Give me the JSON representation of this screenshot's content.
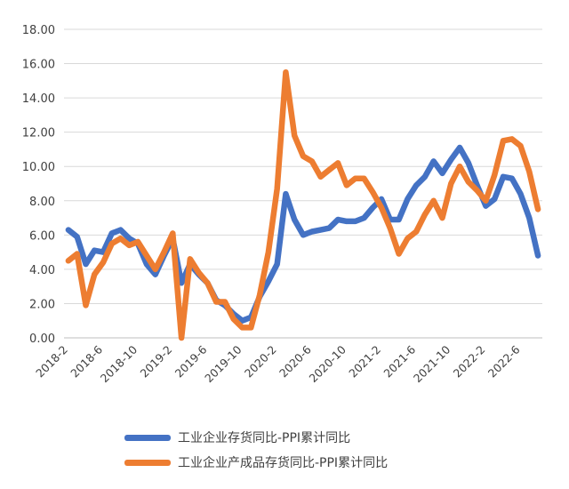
{
  "chart_data": {
    "type": "line",
    "title": "",
    "xlabel": "",
    "ylabel": "",
    "ylim": [
      0,
      18
    ],
    "y_ticks": [
      "0.00",
      "2.00",
      "4.00",
      "6.00",
      "8.00",
      "10.00",
      "12.00",
      "14.00",
      "16.00",
      "18.00"
    ],
    "x_tick_labels": [
      "2018-2",
      "2018-6",
      "2018-10",
      "2019-2",
      "2019-6",
      "2019-10",
      "2020-2",
      "2020-6",
      "2020-10",
      "2021-2",
      "2021-6",
      "2021-10",
      "2022-2",
      "2022-6"
    ],
    "x_tick_every": 4,
    "grid": true,
    "legend_position": "bottom",
    "x": [
      "2018-2",
      "2018-3",
      "2018-4",
      "2018-5",
      "2018-6",
      "2018-7",
      "2018-8",
      "2018-9",
      "2018-10",
      "2018-11",
      "2018-12",
      "2019-1",
      "2019-2",
      "2019-3",
      "2019-4",
      "2019-5",
      "2019-6",
      "2019-7",
      "2019-8",
      "2019-9",
      "2019-10",
      "2019-11",
      "2019-12",
      "2020-1",
      "2020-2",
      "2020-3",
      "2020-4",
      "2020-5",
      "2020-6",
      "2020-7",
      "2020-8",
      "2020-9",
      "2020-10",
      "2020-11",
      "2020-12",
      "2021-1",
      "2021-2",
      "2021-3",
      "2021-4",
      "2021-5",
      "2021-6",
      "2021-7",
      "2021-8",
      "2021-9",
      "2021-10",
      "2021-11",
      "2021-12",
      "2022-1",
      "2022-2",
      "2022-3",
      "2022-4",
      "2022-5",
      "2022-6",
      "2022-7",
      "2022-8"
    ],
    "series": [
      {
        "name": "工业企业存货同比-PPI累计同比",
        "color": "#4472C4",
        "values": [
          6.3,
          5.9,
          4.3,
          5.1,
          5.0,
          6.1,
          6.3,
          5.8,
          5.5,
          4.3,
          3.7,
          4.8,
          5.8,
          3.2,
          4.3,
          3.7,
          3.2,
          2.2,
          1.9,
          1.4,
          1.0,
          1.2,
          2.4,
          3.3,
          4.3,
          8.4,
          6.9,
          6.0,
          6.2,
          6.3,
          6.4,
          6.9,
          6.8,
          6.8,
          7.0,
          7.6,
          8.1,
          6.9,
          6.9,
          8.1,
          8.9,
          9.4,
          10.3,
          9.6,
          10.4,
          11.1,
          10.2,
          8.9,
          7.7,
          8.1,
          9.4,
          9.3,
          8.4,
          7.0,
          4.8
        ]
      },
      {
        "name": "工业企业产成品存货同比-PPI累计同比",
        "color": "#ED7D31",
        "values": [
          4.5,
          4.9,
          1.9,
          3.7,
          4.4,
          5.5,
          5.8,
          5.4,
          5.6,
          4.8,
          4.0,
          5.0,
          6.1,
          0.0,
          4.6,
          3.8,
          3.2,
          2.1,
          2.1,
          1.1,
          0.6,
          0.6,
          2.5,
          5.0,
          8.7,
          15.5,
          11.8,
          10.6,
          10.3,
          9.4,
          9.8,
          10.2,
          8.9,
          9.3,
          9.3,
          8.5,
          7.6,
          6.4,
          4.9,
          5.8,
          6.2,
          7.2,
          8.0,
          7.0,
          9.0,
          10.0,
          9.1,
          8.6,
          8.0,
          9.5,
          11.5,
          11.6,
          11.2,
          9.7,
          7.5
        ]
      }
    ]
  }
}
